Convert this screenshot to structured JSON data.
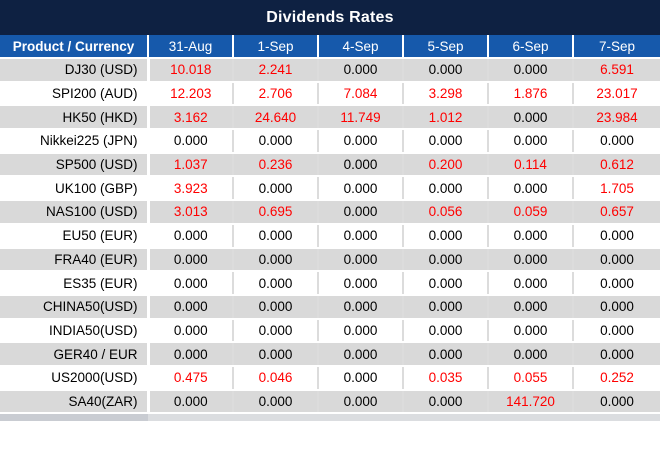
{
  "title": "Dividends Rates",
  "colors": {
    "navy": "#0e2142",
    "header_blue": "#1659ab",
    "stripe_gray": "#d9d9d9",
    "value_red": "#ff0000",
    "text_black": "#000000"
  },
  "table": {
    "product_header": "Product / Currency",
    "date_headers": [
      "31-Aug",
      "1-Sep",
      "4-Sep",
      "5-Sep",
      "6-Sep",
      "7-Sep"
    ],
    "rows": [
      {
        "product": "DJ30 (USD)",
        "values": [
          "10.018",
          "2.241",
          "0.000",
          "0.000",
          "0.000",
          "6.591"
        ]
      },
      {
        "product": "SPI200 (AUD)",
        "values": [
          "12.203",
          "2.706",
          "7.084",
          "3.298",
          "1.876",
          "23.017"
        ]
      },
      {
        "product": "HK50 (HKD)",
        "values": [
          "3.162",
          "24.640",
          "11.749",
          "1.012",
          "0.000",
          "23.984"
        ]
      },
      {
        "product": "Nikkei225 (JPN)",
        "values": [
          "0.000",
          "0.000",
          "0.000",
          "0.000",
          "0.000",
          "0.000"
        ]
      },
      {
        "product": "SP500 (USD)",
        "values": [
          "1.037",
          "0.236",
          "0.000",
          "0.200",
          "0.114",
          "0.612"
        ]
      },
      {
        "product": "UK100 (GBP)",
        "values": [
          "3.923",
          "0.000",
          "0.000",
          "0.000",
          "0.000",
          "1.705"
        ]
      },
      {
        "product": "NAS100 (USD)",
        "values": [
          "3.013",
          "0.695",
          "0.000",
          "0.056",
          "0.059",
          "0.657"
        ]
      },
      {
        "product": "EU50 (EUR)",
        "values": [
          "0.000",
          "0.000",
          "0.000",
          "0.000",
          "0.000",
          "0.000"
        ]
      },
      {
        "product": "FRA40 (EUR)",
        "values": [
          "0.000",
          "0.000",
          "0.000",
          "0.000",
          "0.000",
          "0.000"
        ]
      },
      {
        "product": "ES35 (EUR)",
        "values": [
          "0.000",
          "0.000",
          "0.000",
          "0.000",
          "0.000",
          "0.000"
        ]
      },
      {
        "product": "CHINA50(USD)",
        "values": [
          "0.000",
          "0.000",
          "0.000",
          "0.000",
          "0.000",
          "0.000"
        ]
      },
      {
        "product": "INDIA50(USD)",
        "values": [
          "0.000",
          "0.000",
          "0.000",
          "0.000",
          "0.000",
          "0.000"
        ]
      },
      {
        "product": "GER40 / EUR",
        "values": [
          "0.000",
          "0.000",
          "0.000",
          "0.000",
          "0.000",
          "0.000"
        ]
      },
      {
        "product": "US2000(USD)",
        "values": [
          "0.475",
          "0.046",
          "0.000",
          "0.035",
          "0.055",
          "0.252"
        ]
      },
      {
        "product": "SA40(ZAR)",
        "values": [
          "0.000",
          "0.000",
          "0.000",
          "0.000",
          "141.720",
          "0.000"
        ]
      }
    ]
  }
}
